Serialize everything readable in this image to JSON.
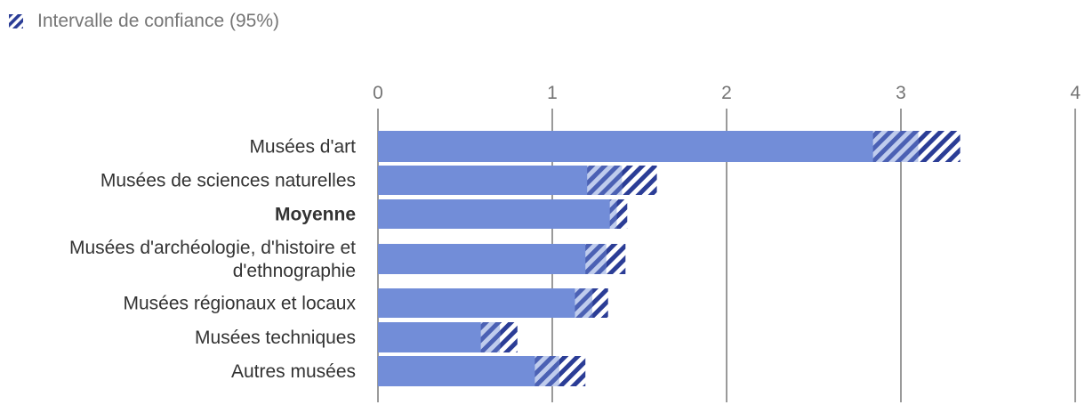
{
  "legend": {
    "label": "Intervalle de confiance (95%)"
  },
  "colors": {
    "bar": "#728dd8",
    "ci_dark": "#2b3d96",
    "grid": "#9a9a9a",
    "tick_text": "#757575",
    "label_text": "#333333"
  },
  "chart_data": {
    "type": "bar",
    "orientation": "horizontal",
    "title": "",
    "xlabel": "",
    "ylabel": "",
    "xlim": [
      0,
      4
    ],
    "ticks": [
      0,
      1,
      2,
      3,
      4
    ],
    "grid": true,
    "legend_position": "top-left",
    "categories": [
      [
        "Musées d'art"
      ],
      [
        "Musées de sciences naturelles"
      ],
      [
        "Moyenne"
      ],
      [
        "Musées d'archéologie, d'histoire et",
        "d'ethnographie"
      ],
      [
        "Musées régionaux et locaux"
      ],
      [
        "Musées techniques"
      ],
      [
        "Autres musées"
      ]
    ],
    "bold_categories": [
      2
    ],
    "values": [
      3.1,
      1.4,
      1.37,
      1.31,
      1.23,
      0.7,
      1.04
    ],
    "ci_low": [
      2.84,
      1.2,
      1.33,
      1.19,
      1.13,
      0.59,
      0.9
    ],
    "ci_high": [
      3.34,
      1.6,
      1.43,
      1.42,
      1.32,
      0.8,
      1.19
    ]
  }
}
